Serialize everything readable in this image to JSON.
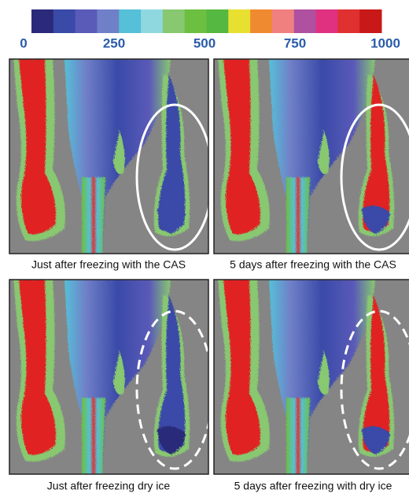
{
  "colorbar": {
    "colors": [
      "#2b2a7a",
      "#3a4aa8",
      "#5a5ab8",
      "#7080c8",
      "#55c0d8",
      "#8fd8e0",
      "#88c870",
      "#6cbf40",
      "#55b840",
      "#e8e030",
      "#f08a30",
      "#f08080",
      "#b050a0",
      "#e03080",
      "#e03030",
      "#c81818"
    ],
    "ticks": [
      0,
      250,
      500,
      750,
      1000
    ]
  },
  "panels": [
    {
      "caption": "Just after freezing with the CAS"
    },
    {
      "caption": "5 days after freezing with the CAS"
    },
    {
      "caption": "Just after freezing dry ice"
    },
    {
      "caption": "5 days after freezing with dry ice"
    }
  ]
}
